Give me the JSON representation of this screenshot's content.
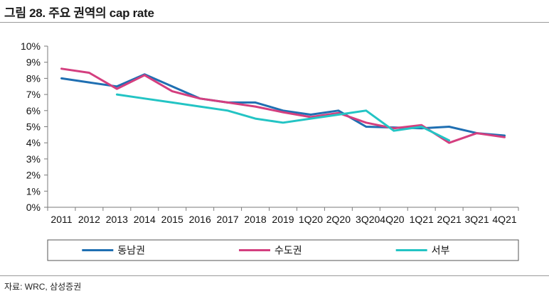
{
  "title": "그림 28. 주요 권역의 cap rate",
  "source": "자료: WRC, 삼성증권",
  "chart_data": {
    "type": "line",
    "title": "그림 28. 주요 권역의 cap rate",
    "categories": [
      "2011",
      "2012",
      "2013",
      "2014",
      "2015",
      "2016",
      "2017",
      "2018",
      "2019",
      "1Q20",
      "2Q20",
      "3Q20",
      "4Q20",
      "1Q21",
      "2Q21",
      "3Q21",
      "4Q21"
    ],
    "x_tick_labels": [
      "2011",
      "2012",
      "2013",
      "2014",
      "2015",
      "2016",
      "2017",
      "2018",
      "2019",
      "1Q20",
      "2Q20",
      "3Q204Q20",
      "",
      "1Q21",
      "2Q21",
      "3Q21",
      "4Q21"
    ],
    "y_tick_labels": [
      "0%",
      "1%",
      "2%",
      "3%",
      "4%",
      "5%",
      "6%",
      "7%",
      "8%",
      "9%",
      "10%"
    ],
    "ylim": [
      0,
      10
    ],
    "y_unit": "%",
    "legend_position": "bottom",
    "series": [
      {
        "name": "동남권",
        "color": "#1f6fb2",
        "values": [
          8.0,
          7.75,
          7.5,
          8.25,
          7.5,
          6.75,
          6.5,
          6.5,
          6.0,
          5.75,
          6.0,
          5.0,
          4.95,
          4.9,
          5.0,
          4.6,
          4.45
        ]
      },
      {
        "name": "수도권",
        "color": "#d43f7f",
        "values": [
          8.6,
          8.35,
          7.35,
          8.2,
          7.2,
          6.75,
          6.5,
          6.25,
          5.9,
          5.6,
          5.85,
          5.25,
          4.9,
          5.1,
          4.0,
          4.6,
          4.35
        ]
      },
      {
        "name": "서부",
        "color": "#23c4c4",
        "values": [
          null,
          null,
          7.0,
          6.75,
          6.5,
          6.25,
          6.0,
          5.5,
          5.25,
          5.5,
          5.75,
          6.0,
          4.75,
          5.0,
          4.15,
          null,
          null
        ]
      }
    ]
  }
}
